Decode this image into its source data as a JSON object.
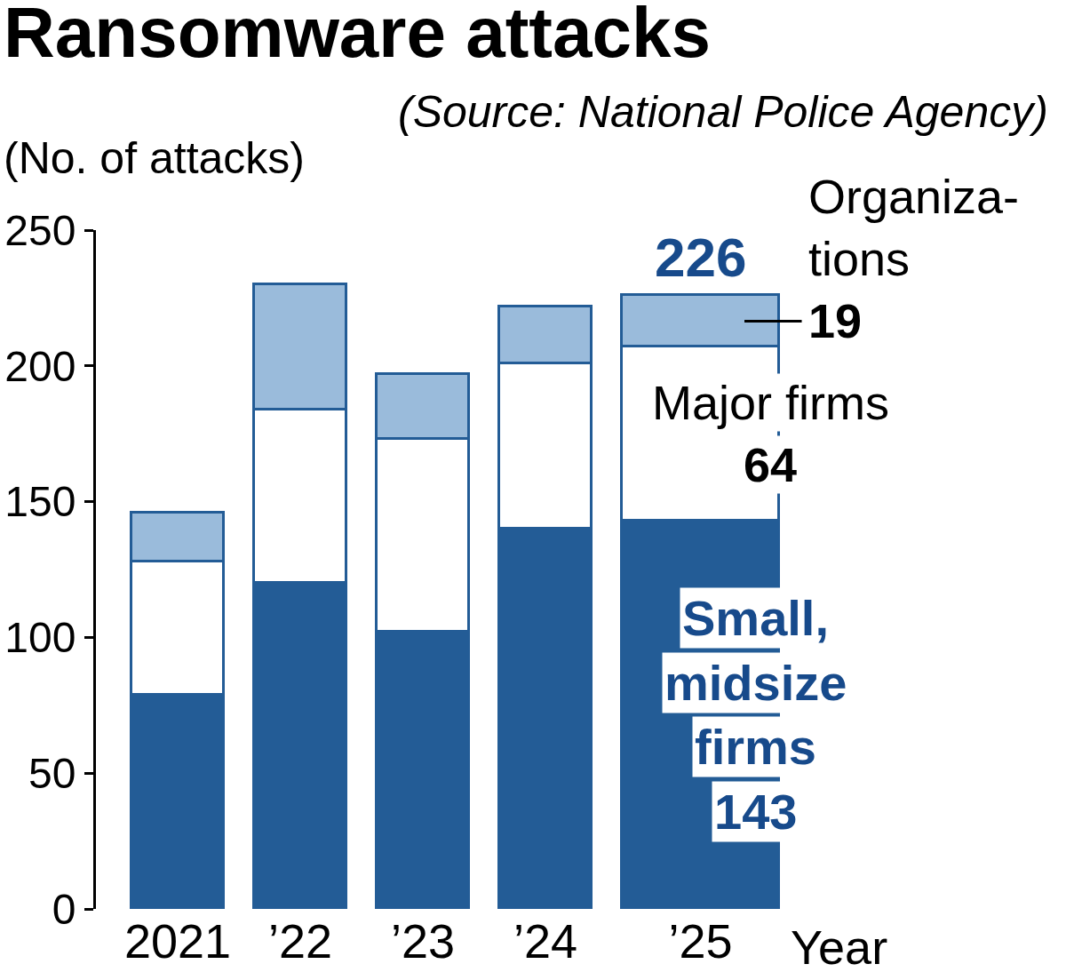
{
  "chart_data": {
    "type": "bar",
    "title": "Ransomware attacks",
    "ylabel": "(No. of attacks)",
    "xlabel": "Year",
    "annotations": [
      "(Source: National Police Agency)"
    ],
    "categories": [
      "2021",
      "’22",
      "’23",
      "’24",
      "’25"
    ],
    "stacked": true,
    "series": [
      {
        "name": "Small,\nmidsize\nfirms",
        "color": "#235c96",
        "values": [
          79,
          120,
          102,
          140,
          143
        ],
        "value_labels": [
          null,
          null,
          null,
          null,
          "143"
        ]
      },
      {
        "name": "Major firms",
        "color": "#ffffff",
        "values": [
          49,
          64,
          71,
          61,
          64
        ],
        "value_labels": [
          null,
          null,
          null,
          null,
          "64"
        ]
      },
      {
        "name": "Organiza-\ntions",
        "color": "#9abbdb",
        "values": [
          18,
          46,
          24,
          21,
          19
        ],
        "value_labels": [
          null,
          null,
          null,
          null,
          "19"
        ]
      }
    ],
    "totals": [
      null,
      null,
      null,
      null,
      "226"
    ],
    "ylim": [
      0,
      250
    ],
    "yticks": [
      0,
      50,
      100,
      150,
      200,
      250
    ],
    "grid": false,
    "legend": false
  }
}
